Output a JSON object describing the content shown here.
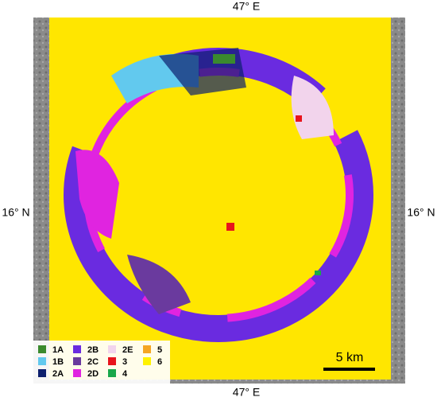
{
  "labels": {
    "top": "47° E",
    "bottom": "47° E",
    "left": "16° N",
    "right": "16° N"
  },
  "legend": [
    {
      "label": "1A",
      "color": "#3a8a2e"
    },
    {
      "label": "1B",
      "color": "#62c9ee"
    },
    {
      "label": "2A",
      "color": "#0d1f6e"
    },
    {
      "label": "2B",
      "color": "#6a2be0"
    },
    {
      "label": "2C",
      "color": "#6a3a9e"
    },
    {
      "label": "2D",
      "color": "#e024e0"
    },
    {
      "label": "2E",
      "color": "#f2d4ec"
    },
    {
      "label": "3",
      "color": "#e8141c"
    },
    {
      "label": "4",
      "color": "#1aa84a"
    },
    {
      "label": "5",
      "color": "#f5a623"
    },
    {
      "label": "6",
      "color": "#fff200"
    }
  ],
  "scale_bar": "5 km"
}
